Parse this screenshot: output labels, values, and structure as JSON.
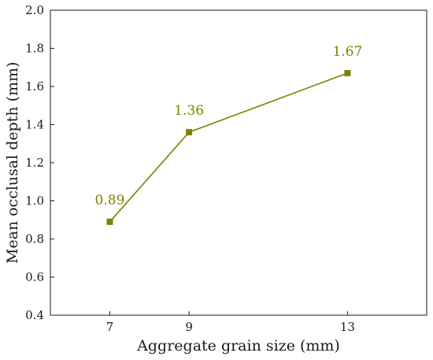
{
  "chart_data": {
    "type": "line",
    "title": "",
    "xlabel": "Aggregate grain size (mm)",
    "ylabel": "Mean occlusal depth (mm)",
    "x": [
      7,
      9,
      13
    ],
    "xticks": [
      "7",
      "9",
      "13"
    ],
    "xlim": [
      5.5,
      15.0
    ],
    "ylim": [
      0.4,
      2.0
    ],
    "yticks": [
      "0.4",
      "0.6",
      "0.8",
      "1.0",
      "1.2",
      "1.4",
      "1.6",
      "1.8",
      "2.0"
    ],
    "grid": false,
    "legend": "none",
    "series": [
      {
        "name": "",
        "values": [
          0.89,
          1.36,
          1.67
        ],
        "data_labels": [
          "0.89",
          "1.36",
          "1.67"
        ],
        "color": "#808000",
        "marker": "square"
      }
    ]
  }
}
